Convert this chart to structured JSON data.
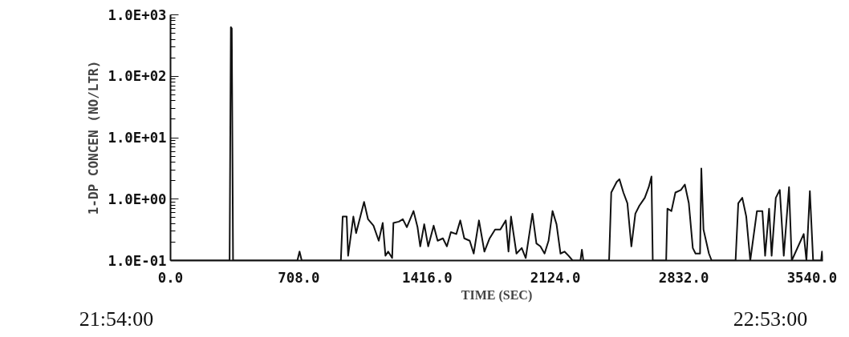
{
  "chart_data": {
    "type": "line",
    "xlabel": "TIME (SEC)",
    "ylabel": "1-DP CONCEN (NO/LTR)",
    "log": "y",
    "grid": false,
    "marker": "none",
    "line_style": "solid",
    "xlim": [
      0,
      3600
    ],
    "ylim": [
      0.1,
      1000
    ],
    "xticks": [
      {
        "value": 0,
        "label": "0.0"
      },
      {
        "value": 708,
        "label": "708.0"
      },
      {
        "value": 1416,
        "label": "1416.0"
      },
      {
        "value": 2124,
        "label": "2124.0"
      },
      {
        "value": 2832,
        "label": "2832.0"
      },
      {
        "value": 3540,
        "label": "3540.0"
      }
    ],
    "yticks": [
      {
        "value": 0.1,
        "label": "1.0E-01"
      },
      {
        "value": 1,
        "label": "1.0E+00"
      },
      {
        "value": 10,
        "label": "1.0E+01"
      },
      {
        "value": 100,
        "label": "1.0E+02"
      },
      {
        "value": 1000,
        "label": "1.0E+03"
      }
    ],
    "annotations": [
      "21:54:00",
      "22:53:00"
    ],
    "series": [
      {
        "color": "#111111",
        "x": [
          0,
          326,
          333,
          338,
          345,
          700,
          712,
          724,
          940,
          950,
          972,
          980,
          1009,
          1024,
          1068,
          1090,
          1120,
          1149,
          1171,
          1186,
          1201,
          1223,
          1230,
          1260,
          1282,
          1304,
          1341,
          1363,
          1378,
          1400,
          1422,
          1452,
          1474,
          1503,
          1525,
          1547,
          1577,
          1599,
          1621,
          1651,
          1673,
          1702,
          1732,
          1761,
          1791,
          1820,
          1850,
          1865,
          1879,
          1909,
          1938,
          1960,
          1997,
          2019,
          2041,
          2064,
          2086,
          2108,
          2130,
          2152,
          2174,
          2196,
          2219,
          2262,
          2270,
          2278,
          2420,
          2432,
          2462,
          2477,
          2499,
          2521,
          2543,
          2565,
          2587,
          2617,
          2639,
          2654,
          2661,
          2735,
          2742,
          2764,
          2786,
          2816,
          2838,
          2860,
          2882,
          2897,
          2922,
          2929,
          2941,
          2971,
          2986,
          3118,
          3133,
          3155,
          3177,
          3199,
          3236,
          3266,
          3281,
          3303,
          3317,
          3340,
          3362,
          3384,
          3413,
          3428,
          3494,
          3509,
          3528,
          3546,
          3590,
          3595,
          3600
        ],
        "values": [
          0.1,
          0.1,
          630,
          600,
          0.1,
          0.1,
          0.14,
          0.1,
          0.1,
          0.52,
          0.52,
          0.12,
          0.52,
          0.28,
          0.9,
          0.47,
          0.37,
          0.21,
          0.41,
          0.12,
          0.14,
          0.11,
          0.41,
          0.43,
          0.47,
          0.35,
          0.64,
          0.35,
          0.17,
          0.39,
          0.17,
          0.37,
          0.21,
          0.23,
          0.17,
          0.29,
          0.27,
          0.45,
          0.23,
          0.21,
          0.13,
          0.45,
          0.14,
          0.23,
          0.32,
          0.32,
          0.45,
          0.14,
          0.52,
          0.13,
          0.16,
          0.11,
          0.58,
          0.19,
          0.17,
          0.13,
          0.21,
          0.64,
          0.39,
          0.13,
          0.14,
          0.12,
          0.1,
          0.1,
          0.15,
          0.1,
          0.1,
          1.28,
          1.91,
          2.11,
          1.28,
          0.86,
          0.17,
          0.58,
          0.78,
          1.05,
          1.57,
          2.33,
          0.1,
          0.1,
          0.7,
          0.64,
          1.28,
          1.41,
          1.73,
          0.86,
          0.16,
          0.13,
          0.13,
          3.15,
          0.32,
          0.13,
          0.1,
          0.1,
          0.86,
          1.05,
          0.52,
          0.1,
          0.64,
          0.64,
          0.12,
          0.7,
          0.12,
          1.05,
          1.41,
          0.12,
          1.57,
          0.1,
          0.27,
          0.1,
          1.35,
          0.1,
          0.1,
          0.14,
          0.1
        ]
      }
    ]
  }
}
